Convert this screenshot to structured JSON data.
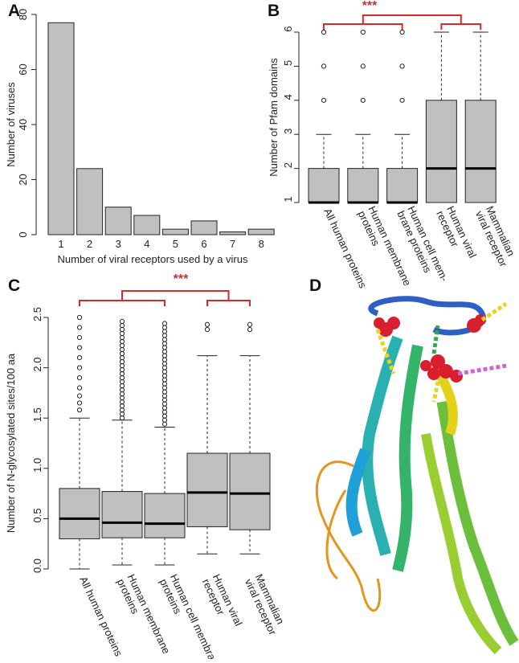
{
  "chart_data": [
    {
      "type": "bar",
      "label": "A",
      "categories": [
        "1",
        "2",
        "3",
        "4",
        "5",
        "6",
        "7",
        "8"
      ],
      "values": [
        77,
        24,
        10,
        7,
        2,
        5,
        1,
        2
      ],
      "color": "#c0c0c0",
      "xlabel": "Number of viral receptors used by a virus",
      "ylabel": "Number of viruses",
      "ylim": [
        0,
        80
      ],
      "yticks": [
        0,
        20,
        40,
        60,
        80
      ]
    },
    {
      "type": "boxplot",
      "label": "B",
      "categories": [
        "All human proteins",
        "Human membrane\nproteins",
        "Human cell mem-\nbrane proteins",
        "Human viral\nreceptor",
        "Mammalian\nviral receptor"
      ],
      "boxes": [
        {
          "min": 1,
          "q1": 1,
          "median": 1,
          "q3": 2,
          "max": 3,
          "outliers": [
            4,
            5,
            6
          ]
        },
        {
          "min": 1,
          "q1": 1,
          "median": 1,
          "q3": 2,
          "max": 3,
          "outliers": [
            4,
            5,
            6
          ]
        },
        {
          "min": 1,
          "q1": 1,
          "median": 1,
          "q3": 2,
          "max": 3,
          "outliers": [
            4,
            5,
            6
          ]
        },
        {
          "min": 1,
          "q1": 1,
          "median": 2,
          "q3": 4,
          "max": 6,
          "outliers": []
        },
        {
          "min": 1,
          "q1": 1,
          "median": 2,
          "q3": 4,
          "max": 6,
          "outliers": []
        }
      ],
      "color": "#c0c0c0",
      "ylabel": "Number of Pfam domains",
      "ylim": [
        1,
        6
      ],
      "yticks": [
        1,
        2,
        3,
        4,
        5,
        6
      ],
      "annotation": "***",
      "annotation_color": "#d42a2a"
    },
    {
      "type": "boxplot",
      "label": "C",
      "categories": [
        "All human proteins",
        "Human membrane\nproteins",
        "Human cell membrane\nproteins",
        "Human viral\nreceptor",
        "Mammalian\nviral receptor"
      ],
      "boxes": [
        {
          "min": 0,
          "q1": 0.3,
          "median": 0.5,
          "q3": 0.8,
          "max": 1.5,
          "outliers": [
            1.58,
            1.65,
            1.72,
            1.8,
            1.9,
            2.0,
            2.1,
            2.2,
            2.3,
            2.4,
            2.5
          ]
        },
        {
          "min": 0.04,
          "q1": 0.31,
          "median": 0.46,
          "q3": 0.77,
          "max": 1.48,
          "outliers": [
            1.5,
            1.54,
            1.58,
            1.62,
            1.66,
            1.7,
            1.74,
            1.78,
            1.82,
            1.86,
            1.9,
            1.94,
            1.98,
            2.02,
            2.06,
            2.1,
            2.14,
            2.18,
            2.22,
            2.26,
            2.3,
            2.34,
            2.38,
            2.42,
            2.46
          ]
        },
        {
          "min": 0.04,
          "q1": 0.31,
          "median": 0.45,
          "q3": 0.75,
          "max": 1.41,
          "outliers": [
            1.44,
            1.48,
            1.52,
            1.56,
            1.6,
            1.64,
            1.68,
            1.72,
            1.76,
            1.8,
            1.84,
            1.88,
            1.92,
            1.96,
            2.0,
            2.04,
            2.08,
            2.12,
            2.16,
            2.2,
            2.24,
            2.28,
            2.32,
            2.36,
            2.4,
            2.44
          ]
        },
        {
          "min": 0.15,
          "q1": 0.42,
          "median": 0.76,
          "q3": 1.15,
          "max": 2.12,
          "outliers": [
            2.38,
            2.43
          ]
        },
        {
          "min": 0.15,
          "q1": 0.39,
          "median": 0.75,
          "q3": 1.15,
          "max": 2.12,
          "outliers": [
            2.38,
            2.43
          ]
        }
      ],
      "color": "#c0c0c0",
      "ylabel": "Number of N-glycosylated sites/100 aa",
      "ylim": [
        0,
        2.5
      ],
      "yticks": [
        {
          "value": 0,
          "label": "0.0"
        },
        {
          "value": 0.5,
          "label": "0.5"
        },
        {
          "value": 1,
          "label": "1.0"
        },
        {
          "value": 1.5,
          "label": "1.5"
        },
        {
          "value": 2,
          "label": "2.0"
        },
        {
          "value": 2.5,
          "label": "2.5"
        }
      ],
      "annotation": "***",
      "annotation_color": "#d42a2a"
    }
  ],
  "image_panel": {
    "label": "D"
  }
}
